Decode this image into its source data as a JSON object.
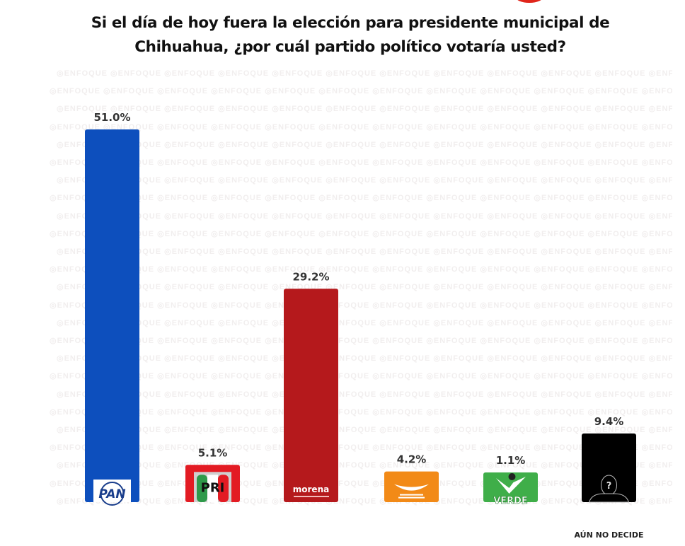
{
  "header": {
    "title_line1": "Si el día de hoy fuera la elección para presidente municipal de",
    "title_line2": "Chihuahua, ¿por cuál partido político votaría usted?"
  },
  "chart_data": {
    "type": "bar",
    "title": "Si el día de hoy fuera la elección para presidente municipal de Chihuahua, ¿por cuál partido político votaría usted?",
    "xlabel": "",
    "ylabel": "",
    "ylim": [
      0,
      51
    ],
    "grid": false,
    "legend": "none",
    "categories": [
      "PAN",
      "PRI",
      "morena",
      "Movimiento Ciudadano",
      "VERDE",
      "AÚN NO DECIDE"
    ],
    "values": [
      51.0,
      5.1,
      29.2,
      4.2,
      1.1,
      9.4
    ],
    "data_labels": [
      "51.0%",
      "5.1%",
      "29.2%",
      "4.2%",
      "1.1%",
      "9.4%"
    ],
    "colors": [
      "#0d4fbd",
      "#e31b23",
      "#b5191c",
      "#f28a17",
      "#3fae49",
      "#000000"
    ],
    "category_label_visible": [
      "",
      "",
      "",
      "",
      "",
      "AÚN NO DECIDE"
    ],
    "logos": [
      "PAN",
      "PRI",
      "morena",
      "Movimiento Ciudadano",
      "VERDE",
      "question-silhouette"
    ]
  },
  "watermark_text": "ENFOQUE"
}
